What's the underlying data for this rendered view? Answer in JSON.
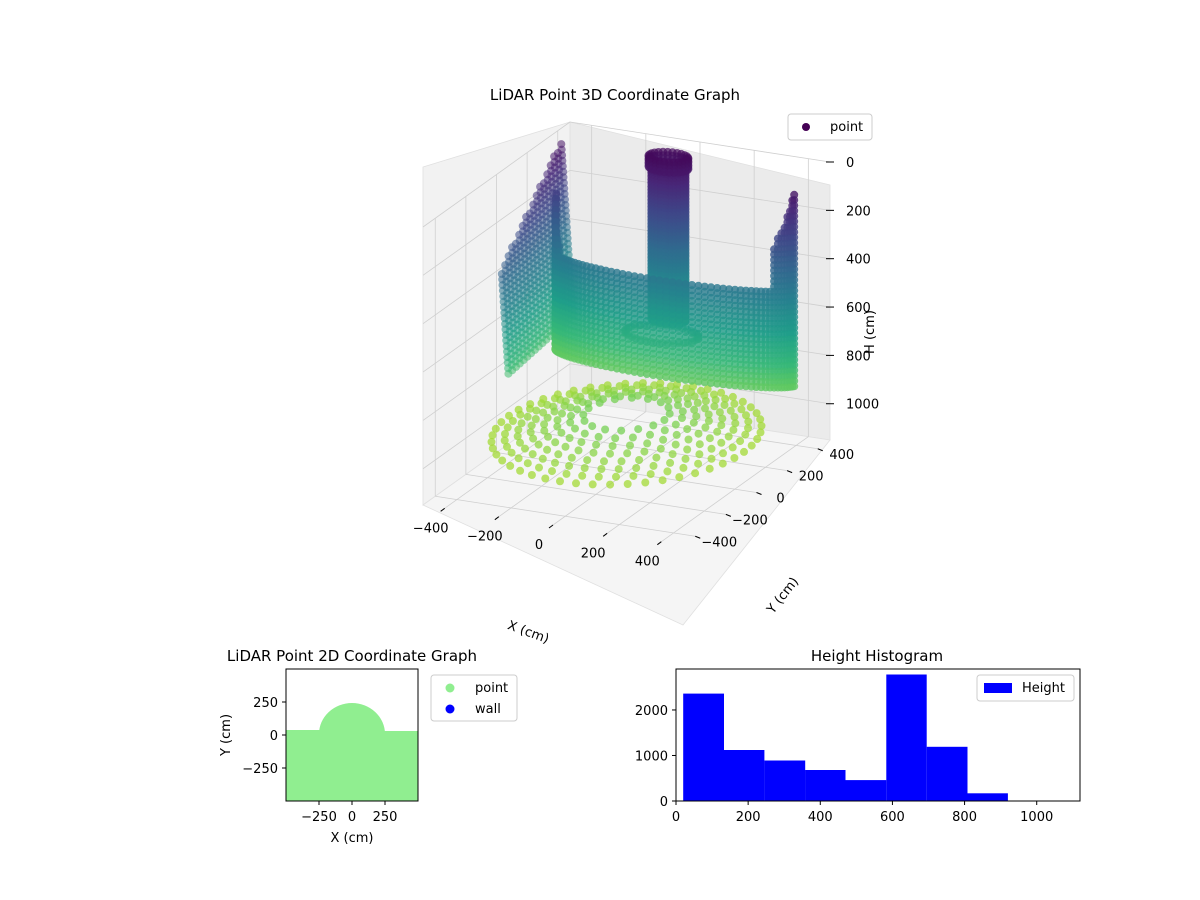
{
  "chart_data": [
    {
      "type": "scatter3d",
      "title": "LiDAR Point 3D Coordinate Graph",
      "xlabel": "X (cm)",
      "ylabel": "Y (cm)",
      "zlabel": "H (cm)",
      "x_ticks": [
        -400,
        -200,
        0,
        200,
        400
      ],
      "y_ticks": [
        -400,
        -200,
        0,
        200,
        400
      ],
      "z_ticks": [
        0,
        200,
        400,
        600,
        800,
        1000
      ],
      "xlim": [
        -480,
        480
      ],
      "ylim": [
        -480,
        480
      ],
      "zlim": [
        1150,
        0
      ],
      "z_inverted": true,
      "colormap": "viridis",
      "legend": [
        {
          "label": "point",
          "color": "#440154"
        }
      ],
      "legend_position": "upper right",
      "grid": true
    },
    {
      "type": "scatter",
      "title": "LiDAR Point 2D Coordinate Graph",
      "xlabel": "X (cm)",
      "ylabel": "Y (cm)",
      "x_ticks": [
        -250,
        0,
        250
      ],
      "y_ticks": [
        -250,
        0,
        250
      ],
      "xlim": [
        -500,
        500
      ],
      "ylim": [
        -500,
        500
      ],
      "series": [
        {
          "name": "point",
          "color": "#90ee90"
        },
        {
          "name": "wall",
          "color": "#0000ff"
        }
      ],
      "legend_position": "outside right",
      "grid": false
    },
    {
      "type": "bar",
      "title": "Height Histogram",
      "series_name": "Height",
      "color": "#0000ff",
      "bin_edges": [
        20,
        133,
        245,
        358,
        470,
        583,
        695,
        808,
        920,
        1033,
        1120
      ],
      "values": [
        2360,
        1120,
        890,
        680,
        460,
        2780,
        1190,
        170,
        0,
        0
      ],
      "x_ticks": [
        0,
        200,
        400,
        600,
        800,
        1000
      ],
      "y_ticks": [
        0,
        1000,
        2000
      ],
      "xlim": [
        0,
        1120
      ],
      "ylim": [
        0,
        2900
      ],
      "legend_position": "upper right",
      "grid": false
    }
  ]
}
